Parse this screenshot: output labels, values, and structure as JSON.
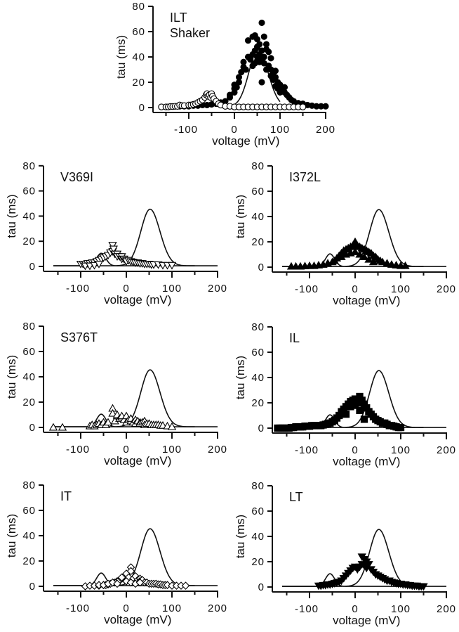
{
  "chart_data": [
    {
      "type": "scatter",
      "panel_id": "ILT",
      "title_lines": [
        "ILT",
        "Shaker"
      ],
      "xlabel": "voltage  (mV)",
      "ylabel": "tau  (ms)",
      "xlim": [
        -165,
        200
      ],
      "ylim": [
        0,
        80
      ],
      "xticks": [
        -100,
        0,
        100,
        200
      ],
      "xminor": [
        -150,
        -50,
        50,
        150
      ],
      "yticks": [
        0,
        20,
        40,
        60,
        80
      ],
      "show_xlabel": true,
      "fit_curves": true,
      "series": [
        {
          "name": "ILT slow (filled circles)",
          "marker": "filled-circle",
          "x": [
            -120,
            -110,
            -100,
            -90,
            -80,
            -70,
            -60,
            -50,
            -40,
            -30,
            -20,
            -10,
            -10,
            0,
            0,
            0,
            5,
            10,
            10,
            15,
            20,
            20,
            25,
            30,
            30,
            35,
            40,
            40,
            40,
            45,
            45,
            45,
            50,
            50,
            50,
            50,
            55,
            55,
            55,
            60,
            60,
            60,
            60,
            65,
            65,
            65,
            70,
            70,
            70,
            75,
            75,
            80,
            80,
            80,
            85,
            85,
            90,
            90,
            90,
            95,
            95,
            100,
            100,
            105,
            110,
            110,
            115,
            120,
            125,
            130,
            140,
            150,
            160,
            170,
            180,
            190,
            200
          ],
          "y": [
            1,
            1,
            1,
            1.5,
            1.5,
            2,
            2,
            2.5,
            3,
            4,
            5,
            8,
            10,
            12,
            15,
            18,
            16,
            20,
            24,
            28,
            32,
            36,
            30,
            40,
            53,
            38,
            42,
            56,
            33,
            45,
            35,
            57,
            48,
            40,
            37,
            54,
            42,
            36,
            50,
            67,
            45,
            38,
            20,
            56,
            40,
            35,
            50,
            46,
            30,
            44,
            33,
            39,
            30,
            25,
            28,
            22,
            29,
            24,
            17,
            20,
            15,
            18,
            12,
            15,
            16,
            12,
            10,
            8,
            6,
            5,
            3.5,
            3,
            2,
            1.5,
            1,
            1,
            1
          ]
        },
        {
          "name": "ILT fast (open circles)",
          "marker": "open-circle",
          "x": [
            -160,
            -150,
            -145,
            -140,
            -135,
            -130,
            -125,
            -120,
            -115,
            -110,
            -100,
            -95,
            -90,
            -85,
            -80,
            -75,
            -70,
            -65,
            -62,
            -60,
            -58,
            -55,
            -52,
            -50,
            -48,
            -45,
            -40,
            -35,
            -30,
            -20,
            -10,
            0,
            10,
            20,
            30,
            40,
            50,
            60,
            70,
            80,
            90,
            100,
            110,
            120,
            130,
            140,
            150
          ],
          "y": [
            0.5,
            0.5,
            0.5,
            0.8,
            0.8,
            1,
            1,
            2,
            1.5,
            1.5,
            2,
            2,
            2.5,
            3,
            4,
            5,
            6,
            8,
            10,
            11,
            9,
            10,
            8,
            11,
            9,
            7,
            5,
            3,
            2,
            1,
            1,
            0.5,
            0.5,
            0.5,
            0.5,
            0.5,
            0.5,
            0.5,
            0.5,
            0.5,
            0.5,
            0.5,
            0.5,
            0.5,
            0.5,
            0.5,
            0.5
          ]
        }
      ]
    },
    {
      "type": "scatter",
      "panel_id": "V369I",
      "title_lines": [
        "V369I"
      ],
      "xlabel": "voltage  (mV)",
      "ylabel": "tau  (ms)",
      "xlim": [
        -165,
        200
      ],
      "ylim": [
        0,
        80
      ],
      "xticks": [
        -100,
        0,
        100,
        200
      ],
      "xminor": [
        -150,
        -50,
        50,
        150
      ],
      "yticks": [
        0,
        20,
        40,
        60,
        80
      ],
      "show_xlabel": true,
      "fit_curves": true,
      "series": [
        {
          "name": "V369I (open down-triangles)",
          "marker": "open-tri-down",
          "x": [
            -100,
            -95,
            -90,
            -85,
            -80,
            -75,
            -70,
            -65,
            -60,
            -55,
            -50,
            -45,
            -40,
            -35,
            -30,
            -30,
            -28,
            -25,
            -20,
            -20,
            -15,
            -10,
            -10,
            -5,
            0,
            0,
            5,
            10,
            15,
            20,
            25,
            30,
            35,
            40,
            45,
            50,
            55,
            60,
            70,
            80,
            90,
            100,
            -90,
            -80,
            -70,
            -60
          ],
          "y": [
            2,
            2,
            2,
            2.5,
            2.5,
            3,
            3,
            4,
            5,
            6,
            7,
            8,
            9,
            11,
            12,
            17,
            14,
            10,
            10,
            8,
            8,
            6,
            8,
            6,
            5,
            4,
            5,
            4,
            3.5,
            3,
            3,
            2.5,
            2.5,
            2,
            2,
            2,
            1.5,
            1.5,
            1.5,
            1,
            1,
            1,
            0.5,
            0.5,
            1,
            2
          ]
        }
      ]
    },
    {
      "type": "scatter",
      "panel_id": "I372L",
      "title_lines": [
        "I372L"
      ],
      "xlabel": "voltage  (mV)",
      "ylabel": "tau  (ms)",
      "xlim": [
        -165,
        200
      ],
      "ylim": [
        0,
        80
      ],
      "xticks": [
        -100,
        0,
        100,
        200
      ],
      "xminor": [
        -150,
        -50,
        50,
        150
      ],
      "yticks": [
        0,
        20,
        40,
        60,
        80
      ],
      "show_xlabel": true,
      "fit_curves": true,
      "series": [
        {
          "name": "I372L (filled up-triangles)",
          "marker": "filled-tri-up",
          "x": [
            -140,
            -130,
            -120,
            -110,
            -100,
            -90,
            -80,
            -70,
            -60,
            -50,
            -45,
            -40,
            -35,
            -30,
            -25,
            -20,
            -15,
            -10,
            -5,
            0,
            0,
            5,
            10,
            15,
            20,
            25,
            30,
            35,
            40,
            45,
            50,
            55,
            60,
            70,
            80,
            90,
            100,
            110,
            -30,
            -20,
            -10,
            0,
            10,
            20,
            30,
            40
          ],
          "y": [
            0.5,
            0.5,
            0.5,
            0.8,
            1,
            1,
            1.5,
            2,
            3,
            4,
            5,
            7,
            9,
            11,
            13,
            14,
            15,
            16,
            17,
            18,
            20,
            17,
            16,
            15,
            14,
            13,
            12,
            11,
            9,
            8,
            6,
            5,
            4,
            3,
            2,
            1.5,
            1,
            1,
            8,
            10,
            11,
            12,
            10,
            8,
            6,
            4
          ]
        }
      ]
    },
    {
      "type": "scatter",
      "panel_id": "S376T",
      "title_lines": [
        "S376T"
      ],
      "xlabel": "voltage  (mV)",
      "ylabel": "tau  (ms)",
      "xlim": [
        -165,
        200
      ],
      "ylim": [
        0,
        80
      ],
      "xticks": [
        -100,
        0,
        100,
        200
      ],
      "xminor": [
        -150,
        -50,
        50,
        150
      ],
      "yticks": [
        0,
        20,
        40,
        60,
        80
      ],
      "show_xlabel": true,
      "fit_curves": true,
      "series": [
        {
          "name": "S376T (open up-triangles)",
          "marker": "open-tri-up",
          "x": [
            -160,
            -140,
            -80,
            -75,
            -70,
            -65,
            -60,
            -55,
            -50,
            -45,
            -40,
            -30,
            -30,
            -25,
            -20,
            -20,
            -15,
            -10,
            -10,
            -5,
            0,
            0,
            5,
            10,
            10,
            15,
            20,
            20,
            25,
            30,
            30,
            35,
            40,
            40,
            45,
            50,
            55,
            60,
            65,
            70,
            75,
            80,
            90,
            100
          ],
          "y": [
            0,
            0,
            1,
            2,
            1,
            2,
            3,
            2,
            4,
            2,
            4,
            15,
            11,
            5,
            9,
            10,
            7,
            8,
            9,
            6,
            9,
            4,
            6,
            5,
            7,
            4,
            6,
            3,
            5,
            4,
            3,
            4,
            5,
            2,
            3,
            3,
            2,
            2,
            2,
            2,
            1.5,
            1.5,
            1,
            0.5
          ]
        }
      ]
    },
    {
      "type": "scatter",
      "panel_id": "IL",
      "title_lines": [
        "IL"
      ],
      "xlabel": "voltage  (mV)",
      "ylabel": "tau  (ms)",
      "xlim": [
        -165,
        200
      ],
      "ylim": [
        0,
        80
      ],
      "xticks": [
        -100,
        0,
        100,
        200
      ],
      "xminor": [
        -150,
        -50,
        50,
        150
      ],
      "yticks": [
        0,
        20,
        40,
        60,
        80
      ],
      "show_xlabel": true,
      "fit_curves": true,
      "series": [
        {
          "name": "IL (filled squares)",
          "marker": "filled-square",
          "x": [
            -170,
            -165,
            -160,
            -155,
            -150,
            -145,
            -140,
            -135,
            -130,
            -125,
            -120,
            -115,
            -110,
            -105,
            -100,
            -95,
            -90,
            -85,
            -80,
            -75,
            -70,
            -65,
            -60,
            -55,
            -50,
            -45,
            -40,
            -35,
            -30,
            -25,
            -20,
            -15,
            -10,
            -5,
            0,
            5,
            10,
            15,
            20,
            25,
            30,
            35,
            40,
            45,
            50,
            55,
            60,
            65,
            70,
            75,
            80,
            85,
            90,
            95,
            100,
            10,
            20,
            30,
            -20,
            -10,
            0
          ],
          "y": [
            0,
            0,
            0,
            0,
            0,
            0,
            0.5,
            0.5,
            1,
            1,
            1,
            1,
            1.5,
            1.5,
            1.5,
            2,
            2,
            2,
            2,
            2,
            2.5,
            3,
            3.5,
            4,
            5,
            6,
            8,
            10,
            13,
            15,
            17,
            19,
            21,
            22,
            23,
            20,
            25,
            22,
            19,
            16,
            13,
            11,
            9,
            7,
            6,
            5,
            4,
            4,
            3,
            2,
            2,
            1.5,
            1,
            0.5,
            0.5,
            14,
            7,
            13,
            11,
            17,
            18
          ]
        }
      ]
    },
    {
      "type": "scatter",
      "panel_id": "IT",
      "title_lines": [
        "IT"
      ],
      "xlabel": "voltage  (mV)",
      "ylabel": "tau  (ms)",
      "xlim": [
        -165,
        200
      ],
      "ylim": [
        0,
        80
      ],
      "xticks": [
        -100,
        0,
        100,
        200
      ],
      "xminor": [
        -150,
        -50,
        50,
        150
      ],
      "yticks": [
        0,
        20,
        40,
        60,
        80
      ],
      "show_xlabel": true,
      "fit_curves": true,
      "series": [
        {
          "name": "IT (open diamonds)",
          "marker": "open-diamond",
          "x": [
            -90,
            -80,
            -70,
            -60,
            -50,
            -45,
            -40,
            -35,
            -30,
            -25,
            -20,
            -15,
            -10,
            -5,
            0,
            0,
            5,
            10,
            10,
            15,
            20,
            20,
            25,
            30,
            30,
            35,
            40,
            45,
            50,
            55,
            60,
            65,
            70,
            75,
            80,
            85,
            90,
            100,
            110,
            120,
            130,
            -60,
            -50,
            -40,
            -30,
            -20,
            -10,
            0,
            10,
            20,
            30
          ],
          "y": [
            0,
            0.5,
            0.5,
            0.5,
            1,
            1,
            1.5,
            2,
            3,
            3,
            4,
            5,
            6,
            8,
            10,
            4,
            7,
            15,
            12,
            6,
            8,
            3,
            5,
            6,
            4,
            5,
            3,
            3,
            2,
            2,
            2,
            2,
            1.5,
            1.5,
            1,
            1,
            1,
            0.5,
            0.5,
            0.5,
            0.5,
            1,
            1,
            2,
            3,
            2,
            7,
            4,
            3,
            2,
            3
          ]
        }
      ]
    },
    {
      "type": "scatter",
      "panel_id": "LT",
      "title_lines": [
        "LT"
      ],
      "xlabel": "voltage  (mV)",
      "ylabel": "tau  (ms)",
      "xlim": [
        -165,
        200
      ],
      "ylim": [
        0,
        80
      ],
      "xticks": [
        -100,
        0,
        100,
        200
      ],
      "xminor": [
        -150,
        -50,
        50,
        150
      ],
      "yticks": [
        0,
        20,
        40,
        60,
        80
      ],
      "show_xlabel": true,
      "fit_curves": true,
      "series": [
        {
          "name": "LT (filled down-triangles)",
          "marker": "filled-tri-down",
          "x": [
            -80,
            -75,
            -70,
            -65,
            -60,
            -55,
            -50,
            -45,
            -40,
            -35,
            -30,
            -25,
            -20,
            -15,
            -10,
            -5,
            0,
            5,
            10,
            15,
            15,
            20,
            20,
            25,
            25,
            30,
            35,
            40,
            45,
            50,
            55,
            60,
            65,
            70,
            75,
            80,
            85,
            90,
            95,
            100,
            105,
            110,
            115,
            120,
            125,
            130,
            135,
            140,
            145,
            150
          ],
          "y": [
            1,
            1,
            1.5,
            1.5,
            2,
            2,
            2.5,
            3,
            3.5,
            4,
            5,
            7,
            9,
            11,
            13,
            15,
            16,
            14,
            16,
            18,
            24,
            22,
            17,
            20,
            15,
            18,
            14,
            12,
            10,
            9,
            8,
            7,
            6,
            5,
            5,
            4,
            3.5,
            3,
            2.5,
            2.5,
            2,
            2,
            1.5,
            1.5,
            1,
            1,
            1,
            0.5,
            0.5,
            0.5
          ]
        }
      ]
    }
  ],
  "reference_fits": {
    "description": "Shaker ILT fit curves (solid lines) overlaid on every panel",
    "slow": {
      "peak_mV": 52,
      "peak_ms": 45.5,
      "baseline_ms": 0.5,
      "range_mV": [
        -160,
        200
      ]
    },
    "fast": {
      "peak_mV": -55,
      "peak_ms": 10.5,
      "baseline_ms": 0.5,
      "range_mV": [
        -160,
        150
      ]
    }
  }
}
